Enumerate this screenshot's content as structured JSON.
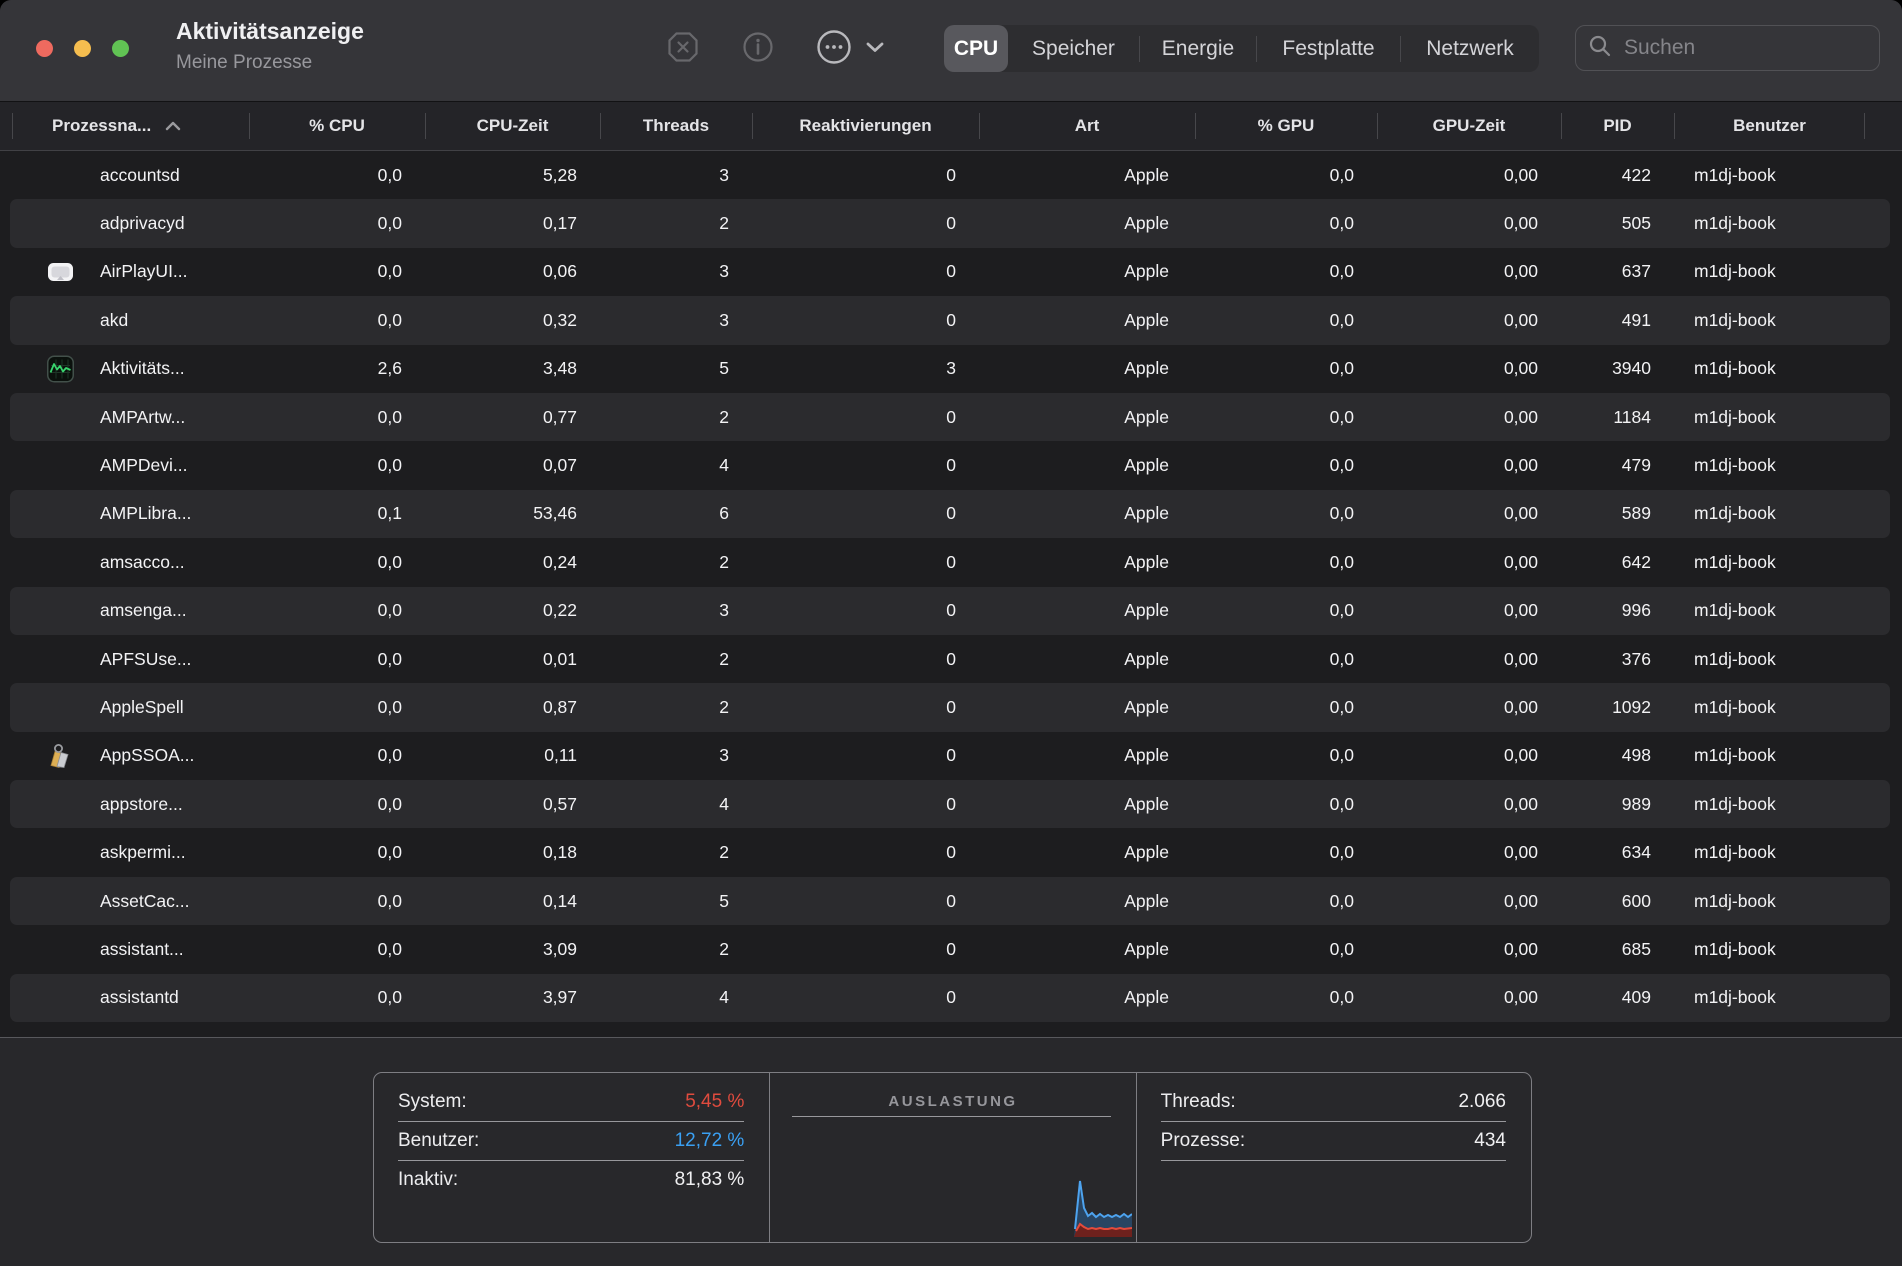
{
  "window": {
    "title": "Aktivitätsanzeige",
    "subtitle": "Meine Prozesse"
  },
  "toolbar": {
    "segments": [
      {
        "label": "CPU",
        "selected": true
      },
      {
        "label": "Speicher",
        "selected": false
      },
      {
        "label": "Energie",
        "selected": false
      },
      {
        "label": "Festplatte",
        "selected": false
      },
      {
        "label": "Netzwerk",
        "selected": false
      }
    ],
    "search_placeholder": "Suchen"
  },
  "table": {
    "columns": [
      {
        "key": "name",
        "label": "Prozessna...",
        "sort": "asc"
      },
      {
        "key": "cpu",
        "label": "% CPU"
      },
      {
        "key": "cpu_time",
        "label": "CPU-Zeit"
      },
      {
        "key": "threads",
        "label": "Threads"
      },
      {
        "key": "idle_wake_ups",
        "label": "Reaktivierungen"
      },
      {
        "key": "kind",
        "label": "Art"
      },
      {
        "key": "gpu",
        "label": "% GPU"
      },
      {
        "key": "gpu_time",
        "label": "GPU-Zeit"
      },
      {
        "key": "pid",
        "label": "PID"
      },
      {
        "key": "user",
        "label": "Benutzer"
      }
    ],
    "rows": [
      {
        "icon": "",
        "name": "accountsd",
        "cpu": "0,0",
        "cpu_time": "5,28",
        "threads": "3",
        "idle_wake_ups": "0",
        "kind": "Apple",
        "gpu": "0,0",
        "gpu_time": "0,00",
        "pid": "422",
        "user": "m1dj-book"
      },
      {
        "icon": "",
        "name": "adprivacyd",
        "cpu": "0,0",
        "cpu_time": "0,17",
        "threads": "2",
        "idle_wake_ups": "0",
        "kind": "Apple",
        "gpu": "0,0",
        "gpu_time": "0,00",
        "pid": "505",
        "user": "m1dj-book"
      },
      {
        "icon": "airplay-ui",
        "name": "AirPlayUI...",
        "cpu": "0,0",
        "cpu_time": "0,06",
        "threads": "3",
        "idle_wake_ups": "0",
        "kind": "Apple",
        "gpu": "0,0",
        "gpu_time": "0,00",
        "pid": "637",
        "user": "m1dj-book"
      },
      {
        "icon": "",
        "name": "akd",
        "cpu": "0,0",
        "cpu_time": "0,32",
        "threads": "3",
        "idle_wake_ups": "0",
        "kind": "Apple",
        "gpu": "0,0",
        "gpu_time": "0,00",
        "pid": "491",
        "user": "m1dj-book"
      },
      {
        "icon": "activity-monitor",
        "name": "Aktivitäts...",
        "cpu": "2,6",
        "cpu_time": "3,48",
        "threads": "5",
        "idle_wake_ups": "3",
        "kind": "Apple",
        "gpu": "0,0",
        "gpu_time": "0,00",
        "pid": "3940",
        "user": "m1dj-book"
      },
      {
        "icon": "",
        "name": "AMPArtw...",
        "cpu": "0,0",
        "cpu_time": "0,77",
        "threads": "2",
        "idle_wake_ups": "0",
        "kind": "Apple",
        "gpu": "0,0",
        "gpu_time": "0,00",
        "pid": "1184",
        "user": "m1dj-book"
      },
      {
        "icon": "",
        "name": "AMPDevi...",
        "cpu": "0,0",
        "cpu_time": "0,07",
        "threads": "4",
        "idle_wake_ups": "0",
        "kind": "Apple",
        "gpu": "0,0",
        "gpu_time": "0,00",
        "pid": "479",
        "user": "m1dj-book"
      },
      {
        "icon": "",
        "name": "AMPLibra...",
        "cpu": "0,1",
        "cpu_time": "53,46",
        "threads": "6",
        "idle_wake_ups": "0",
        "kind": "Apple",
        "gpu": "0,0",
        "gpu_time": "0,00",
        "pid": "589",
        "user": "m1dj-book"
      },
      {
        "icon": "",
        "name": "amsacco...",
        "cpu": "0,0",
        "cpu_time": "0,24",
        "threads": "2",
        "idle_wake_ups": "0",
        "kind": "Apple",
        "gpu": "0,0",
        "gpu_time": "0,00",
        "pid": "642",
        "user": "m1dj-book"
      },
      {
        "icon": "",
        "name": "amsenga...",
        "cpu": "0,0",
        "cpu_time": "0,22",
        "threads": "3",
        "idle_wake_ups": "0",
        "kind": "Apple",
        "gpu": "0,0",
        "gpu_time": "0,00",
        "pid": "996",
        "user": "m1dj-book"
      },
      {
        "icon": "",
        "name": "APFSUse...",
        "cpu": "0,0",
        "cpu_time": "0,01",
        "threads": "2",
        "idle_wake_ups": "0",
        "kind": "Apple",
        "gpu": "0,0",
        "gpu_time": "0,00",
        "pid": "376",
        "user": "m1dj-book"
      },
      {
        "icon": "",
        "name": "AppleSpell",
        "cpu": "0,0",
        "cpu_time": "0,87",
        "threads": "2",
        "idle_wake_ups": "0",
        "kind": "Apple",
        "gpu": "0,0",
        "gpu_time": "0,00",
        "pid": "1092",
        "user": "m1dj-book"
      },
      {
        "icon": "app-sso",
        "name": "AppSSOA...",
        "cpu": "0,0",
        "cpu_time": "0,11",
        "threads": "3",
        "idle_wake_ups": "0",
        "kind": "Apple",
        "gpu": "0,0",
        "gpu_time": "0,00",
        "pid": "498",
        "user": "m1dj-book"
      },
      {
        "icon": "",
        "name": "appstore...",
        "cpu": "0,0",
        "cpu_time": "0,57",
        "threads": "4",
        "idle_wake_ups": "0",
        "kind": "Apple",
        "gpu": "0,0",
        "gpu_time": "0,00",
        "pid": "989",
        "user": "m1dj-book"
      },
      {
        "icon": "",
        "name": "askpermi...",
        "cpu": "0,0",
        "cpu_time": "0,18",
        "threads": "2",
        "idle_wake_ups": "0",
        "kind": "Apple",
        "gpu": "0,0",
        "gpu_time": "0,00",
        "pid": "634",
        "user": "m1dj-book"
      },
      {
        "icon": "",
        "name": "AssetCac...",
        "cpu": "0,0",
        "cpu_time": "0,14",
        "threads": "5",
        "idle_wake_ups": "0",
        "kind": "Apple",
        "gpu": "0,0",
        "gpu_time": "0,00",
        "pid": "600",
        "user": "m1dj-book"
      },
      {
        "icon": "",
        "name": "assistant...",
        "cpu": "0,0",
        "cpu_time": "3,09",
        "threads": "2",
        "idle_wake_ups": "0",
        "kind": "Apple",
        "gpu": "0,0",
        "gpu_time": "0,00",
        "pid": "685",
        "user": "m1dj-book"
      },
      {
        "icon": "",
        "name": "assistantd",
        "cpu": "0,0",
        "cpu_time": "3,97",
        "threads": "4",
        "idle_wake_ups": "0",
        "kind": "Apple",
        "gpu": "0,0",
        "gpu_time": "0,00",
        "pid": "409",
        "user": "m1dj-book"
      }
    ]
  },
  "footer": {
    "cpu_load": {
      "system_label": "System:",
      "system_value": "5,45 %",
      "user_label": "Benutzer:",
      "user_value": "12,72 %",
      "idle_label": "Inaktiv:",
      "idle_value": "81,83 %"
    },
    "load_title": "AUSLASTUNG",
    "stats": {
      "threads_label": "Threads:",
      "threads_value": "2.066",
      "processes_label": "Prozesse:",
      "processes_value": "434"
    },
    "colors": {
      "system": "#e04b3e",
      "user": "#3aa0f3",
      "idle": "#f0f0f2"
    }
  }
}
